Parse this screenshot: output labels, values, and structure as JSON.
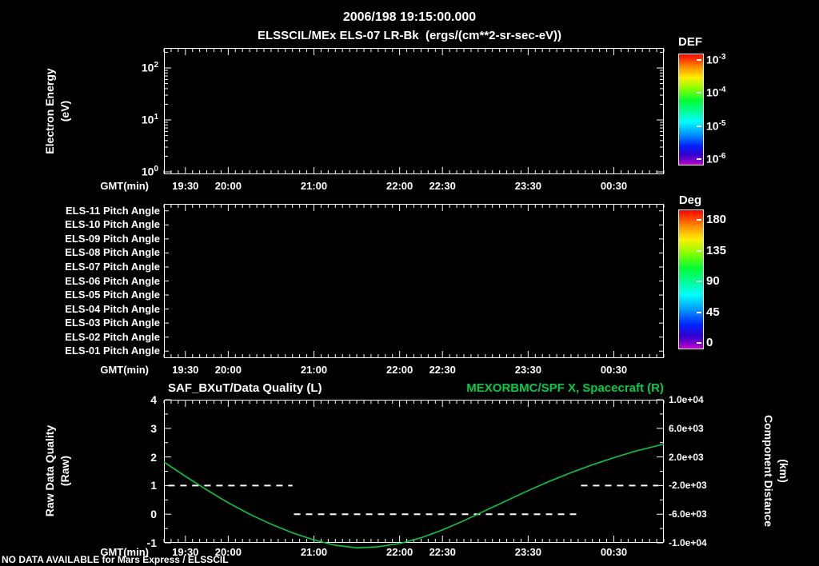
{
  "title": {
    "line1": "2006/198 19:15:00.000",
    "line2": "ELSSCIL/MEx ELS-07 LR-Bk  (ergs/(cm**2-sr-sec-eV))"
  },
  "time_axis": {
    "label": "GMT(min)",
    "start_min": 1155,
    "end_min": 1505,
    "minor_step_min": 5,
    "major_ticks": [
      {
        "min": 1170,
        "label": "19:30"
      },
      {
        "min": 1200,
        "label": "20:00"
      },
      {
        "min": 1260,
        "label": "21:00"
      },
      {
        "min": 1320,
        "label": "22:00"
      },
      {
        "min": 1350,
        "label": "22:30"
      },
      {
        "min": 1410,
        "label": "23:30"
      },
      {
        "min": 1470,
        "label": "00:30"
      }
    ]
  },
  "panel1": {
    "ylabel_line1": "Electron Energy",
    "ylabel_line2": "(eV)",
    "ytick_exponents": [
      2,
      1,
      0
    ],
    "colorbar": {
      "title": "DEF",
      "tick_exponents": [
        -3,
        -4,
        -5,
        -6
      ]
    }
  },
  "panel2": {
    "row_labels": [
      "ELS-11 Pitch Angle",
      "ELS-10 Pitch Angle",
      "ELS-09 Pitch Angle",
      "ELS-08 Pitch Angle",
      "ELS-07 Pitch Angle",
      "ELS-06 Pitch Angle",
      "ELS-05 Pitch Angle",
      "ELS-04 Pitch Angle",
      "ELS-03 Pitch Angle",
      "ELS-02 Pitch Angle",
      "ELS-01 Pitch Angle"
    ],
    "colorbar": {
      "title": "Deg",
      "ticks": [
        "180",
        "135",
        "90",
        "45",
        "0"
      ]
    }
  },
  "panel3": {
    "title_left": "SAF_BXuT/Data Quality (L)",
    "title_right": "MEXORBMC/SPF X, Spacecraft (R)",
    "ylabel_left_line1": "Raw Data Quality",
    "ylabel_left_line2": "(Raw)",
    "ylabel_right_line1": "Component Distance",
    "ylabel_right_line2": "(km)",
    "left_ticks": [
      "4",
      "3",
      "2",
      "1",
      "0",
      "-1"
    ],
    "right_ticks": [
      "1.0e+04",
      "6.0e+03",
      "2.0e+03",
      "-2.0e+03",
      "-6.0e+03",
      "-1.0e+04"
    ]
  },
  "footer_note": "NO DATA AVAILABLE for Mars Express / ELSSCIL",
  "colors": {
    "background": "#000000",
    "foreground": "#ffffff",
    "spacecraft_green": "#00cc44"
  },
  "chart_data": [
    {
      "type": "heatmap",
      "panel": "electron-energy-spectrogram",
      "title": "ELSSCIL/MEx ELS-07 LR-Bk",
      "units": "ergs/(cm**2-sr-sec-eV)",
      "xlabel": "GMT(min)",
      "ylabel": "Electron Energy (eV)",
      "y_scale": "log",
      "ylim": [
        1,
        250
      ],
      "x_range": [
        "19:15",
        "01:05"
      ],
      "colorbar": {
        "title": "DEF",
        "scale": "log",
        "tick_values": [
          0.001,
          0.0001,
          1e-05,
          1e-06
        ]
      },
      "values": [],
      "note": "blank panel - no data plotted"
    },
    {
      "type": "heatmap",
      "panel": "pitch-angle-bars",
      "rows": [
        "ELS-11",
        "ELS-10",
        "ELS-09",
        "ELS-08",
        "ELS-07",
        "ELS-06",
        "ELS-05",
        "ELS-04",
        "ELS-03",
        "ELS-02",
        "ELS-01"
      ],
      "colorbar": {
        "title": "Deg",
        "range": [
          0,
          180
        ],
        "tick_values": [
          180,
          135,
          90,
          45,
          0
        ]
      },
      "values": [],
      "note": "blank panel - no data plotted"
    },
    {
      "type": "line",
      "panel": "quality-and-distance",
      "x_axis": {
        "label": "GMT(min)",
        "start_min": 1155,
        "end_min": 1505
      },
      "left_axis": {
        "label": "Raw Data Quality (Raw)",
        "range": [
          -1,
          4
        ]
      },
      "right_axis": {
        "label": "Component Distance (km)",
        "range": [
          -10000,
          10000
        ]
      },
      "series": [
        {
          "name": "SAF_BXuT/Data Quality (L)",
          "axis": "left",
          "style": "dashed",
          "color": "#ffffff",
          "segments": [
            {
              "value": 1,
              "start_min": 1158,
              "end_min": 1245
            },
            {
              "value": 0,
              "start_min": 1246,
              "end_min": 1444
            },
            {
              "value": 1,
              "start_min": 1447,
              "end_min": 1501
            }
          ]
        },
        {
          "name": "MEXORBMC/SPF X, Spacecraft (R)",
          "axis": "right",
          "style": "solid",
          "color": "#00cc44",
          "points_min_km": [
            [
              1155,
              1300
            ],
            [
              1170,
              -700
            ],
            [
              1185,
              -2600
            ],
            [
              1200,
              -4400
            ],
            [
              1215,
              -6000
            ],
            [
              1230,
              -7400
            ],
            [
              1245,
              -8600
            ],
            [
              1260,
              -9600
            ],
            [
              1275,
              -10350
            ],
            [
              1290,
              -10700
            ],
            [
              1305,
              -10550
            ],
            [
              1320,
              -10100
            ],
            [
              1335,
              -9300
            ],
            [
              1350,
              -8200
            ],
            [
              1365,
              -6900
            ],
            [
              1380,
              -5500
            ],
            [
              1395,
              -4100
            ],
            [
              1410,
              -2700
            ],
            [
              1425,
              -1400
            ],
            [
              1440,
              -200
            ],
            [
              1455,
              900
            ],
            [
              1470,
              1900
            ],
            [
              1485,
              2800
            ],
            [
              1505,
              3800
            ]
          ]
        }
      ]
    }
  ]
}
